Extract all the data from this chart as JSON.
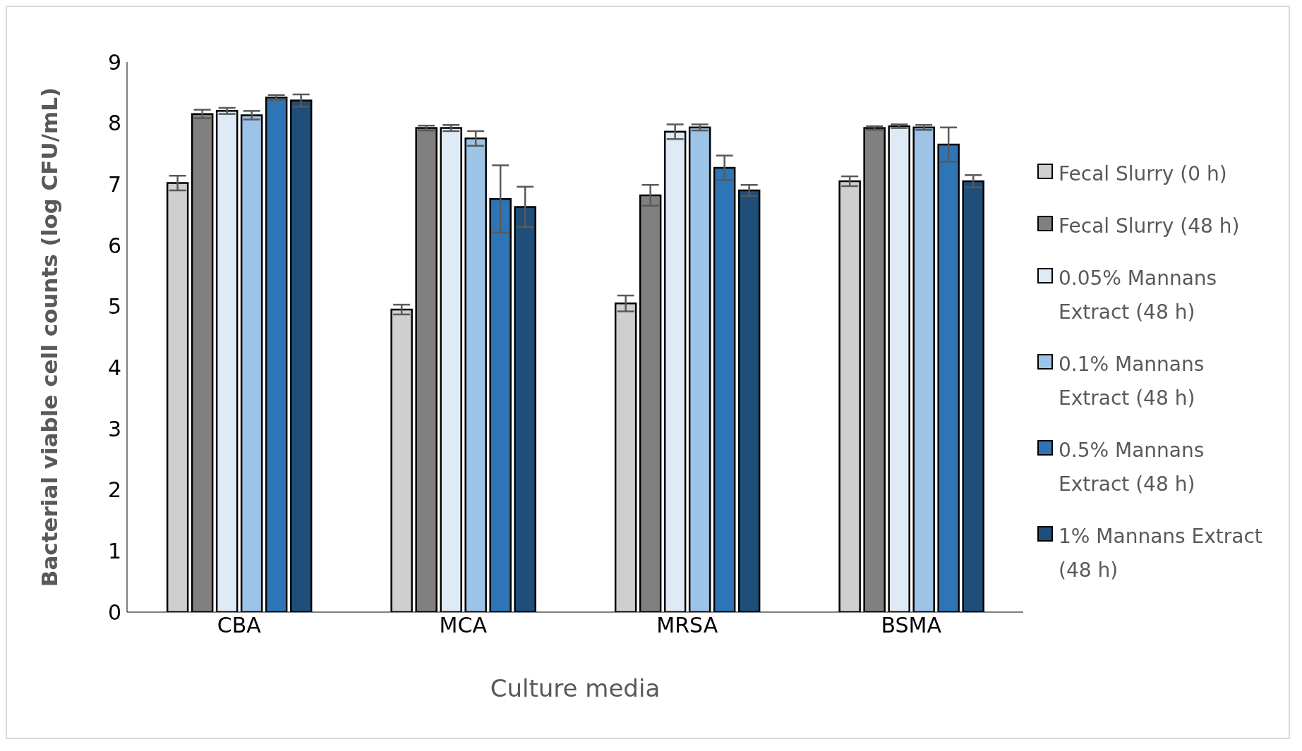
{
  "chart_data": {
    "type": "bar",
    "xlabel": "Culture media",
    "ylabel": "Bacterial  viable cell counts  (log CFU/mL)",
    "categories": [
      "CBA",
      "MCA",
      "MRSA",
      "BSMA"
    ],
    "series": [
      {
        "name": "Fecal Slurry (0 h)",
        "color": "#d0cece",
        "values": [
          7.02,
          4.95,
          5.05,
          7.05
        ],
        "errors": [
          0.12,
          0.08,
          0.13,
          0.08
        ]
      },
      {
        "name": "Fecal Slurry (48 h)",
        "color": "#808080",
        "values": [
          8.15,
          7.92,
          6.82,
          7.92
        ],
        "errors": [
          0.07,
          0.04,
          0.17,
          0.03
        ]
      },
      {
        "name": "0.05% Mannans Extract (48 h)",
        "color": "#deebf7",
        "values": [
          8.2,
          7.92,
          7.86,
          7.95
        ],
        "errors": [
          0.05,
          0.05,
          0.12,
          0.03
        ]
      },
      {
        "name": "0.1% Mannans Extract (48 h)",
        "color": "#9dc3e6",
        "values": [
          8.13,
          7.75,
          7.93,
          7.93
        ],
        "errors": [
          0.07,
          0.12,
          0.05,
          0.04
        ]
      },
      {
        "name": "0.5% Mannans Extract (48 h)",
        "color": "#2e75b6",
        "values": [
          8.42,
          6.76,
          7.27,
          7.65
        ],
        "errors": [
          0.04,
          0.55,
          0.2,
          0.28
        ]
      },
      {
        "name": "1% Mannans Extract (48 h)",
        "color": "#1f4e79",
        "values": [
          8.37,
          6.63,
          6.9,
          7.05
        ],
        "errors": [
          0.1,
          0.33,
          0.09,
          0.1
        ]
      }
    ],
    "ylim": [
      0,
      9
    ],
    "yticks": [
      0,
      1,
      2,
      3,
      4,
      5,
      6,
      7,
      8,
      9
    ],
    "grid": false,
    "legend": "right"
  }
}
